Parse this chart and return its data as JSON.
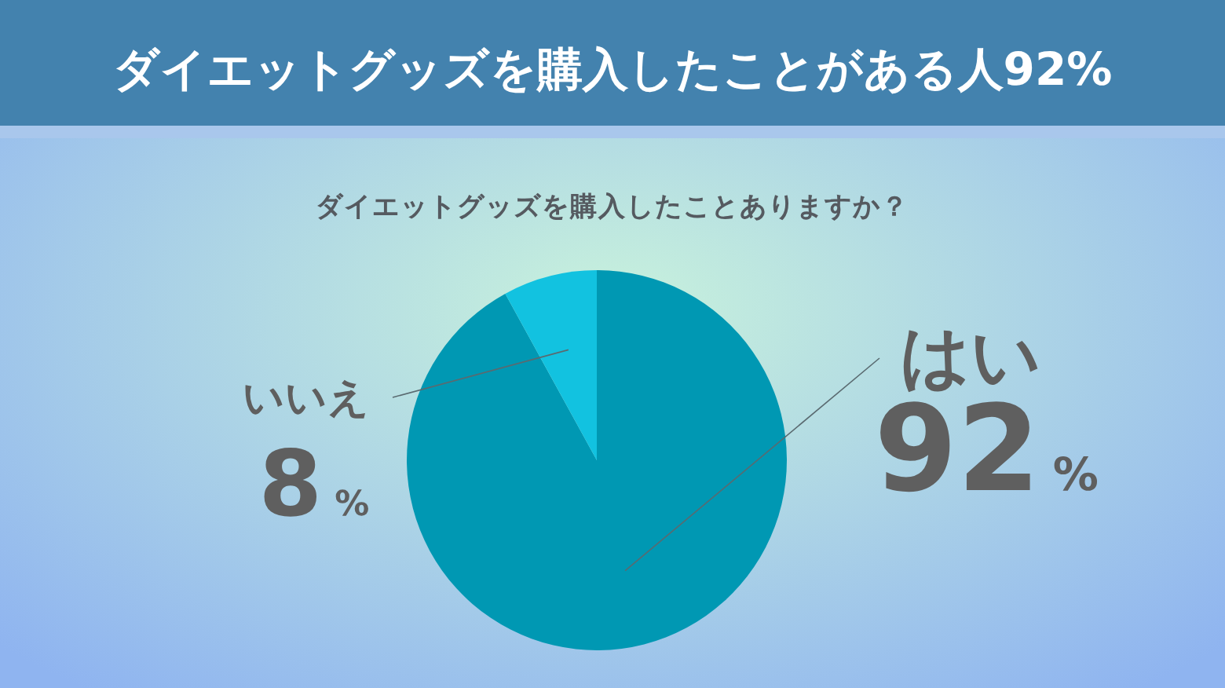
{
  "chart_data": {
    "type": "pie",
    "title": "ダイエットグッズを購入したことがある人92%",
    "subtitle": "ダイエットグッズを購入したことありますか？",
    "categories": [
      "はい",
      "いいえ"
    ],
    "values": [
      92,
      8
    ],
    "colors": [
      "#0098b3",
      "#12c2e0"
    ],
    "value_labels": [
      "92%",
      "8%"
    ]
  }
}
